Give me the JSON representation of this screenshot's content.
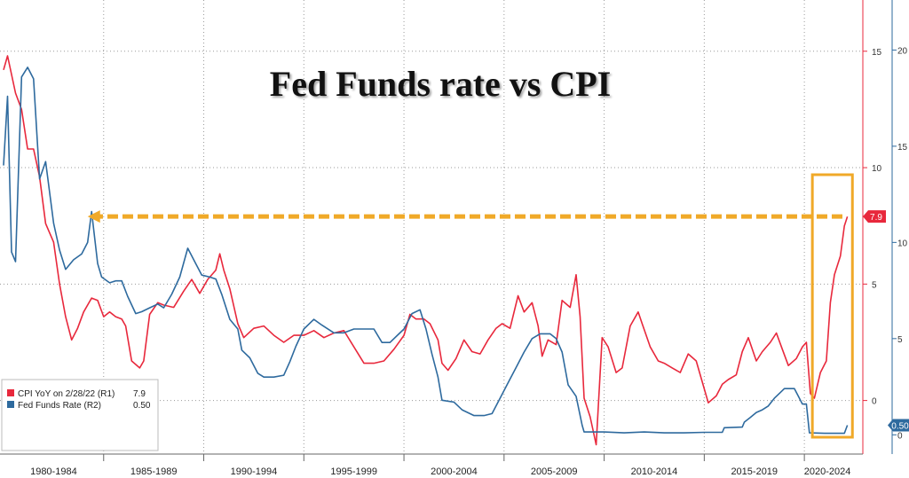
{
  "chart_data": {
    "type": "line",
    "title": "Fed Funds rate vs CPI",
    "x_tick_labels": [
      "1980-1984",
      "1985-1989",
      "1990-1994",
      "1995-1999",
      "2000-2004",
      "2005-2009",
      "2010-2014",
      "2015-2019",
      "2020-2024"
    ],
    "x_range": [
      1980.0,
      2022.3
    ],
    "axis_r1": {
      "ticks": [
        0,
        5,
        10,
        15
      ],
      "range": [
        -2.3,
        17.2
      ]
    },
    "axis_r2": {
      "ticks": [
        0,
        5,
        10,
        15,
        20
      ],
      "range": [
        -1.0,
        22.6
      ]
    },
    "grid": true,
    "legend_position": "bottom-left",
    "series": [
      {
        "name": "CPI YoY on 2/28/22 (R1)",
        "legend_value": "7.9",
        "axis": "R1",
        "color": "#e8283c",
        "points": [
          [
            1980.0,
            14.2
          ],
          [
            1980.2,
            14.8
          ],
          [
            1980.6,
            13.2
          ],
          [
            1980.9,
            12.5
          ],
          [
            1981.2,
            10.8
          ],
          [
            1981.5,
            10.8
          ],
          [
            1981.8,
            9.6
          ],
          [
            1982.1,
            7.6
          ],
          [
            1982.5,
            6.8
          ],
          [
            1982.8,
            5.0
          ],
          [
            1983.1,
            3.6
          ],
          [
            1983.4,
            2.6
          ],
          [
            1983.7,
            3.1
          ],
          [
            1984.0,
            3.8
          ],
          [
            1984.4,
            4.4
          ],
          [
            1984.7,
            4.3
          ],
          [
            1985.0,
            3.6
          ],
          [
            1985.3,
            3.8
          ],
          [
            1985.6,
            3.6
          ],
          [
            1985.9,
            3.5
          ],
          [
            1986.1,
            3.2
          ],
          [
            1986.4,
            1.7
          ],
          [
            1986.8,
            1.4
          ],
          [
            1987.0,
            1.7
          ],
          [
            1987.3,
            3.7
          ],
          [
            1987.7,
            4.2
          ],
          [
            1988.0,
            4.1
          ],
          [
            1988.5,
            4.0
          ],
          [
            1989.0,
            4.7
          ],
          [
            1989.4,
            5.2
          ],
          [
            1989.8,
            4.6
          ],
          [
            1990.2,
            5.2
          ],
          [
            1990.6,
            5.6
          ],
          [
            1990.8,
            6.3
          ],
          [
            1991.0,
            5.6
          ],
          [
            1991.3,
            4.8
          ],
          [
            1991.7,
            3.3
          ],
          [
            1992.0,
            2.7
          ],
          [
            1992.5,
            3.1
          ],
          [
            1993.0,
            3.2
          ],
          [
            1993.5,
            2.8
          ],
          [
            1994.0,
            2.5
          ],
          [
            1994.5,
            2.8
          ],
          [
            1995.0,
            2.8
          ],
          [
            1995.5,
            3.0
          ],
          [
            1996.0,
            2.7
          ],
          [
            1996.5,
            2.9
          ],
          [
            1997.0,
            3.0
          ],
          [
            1997.5,
            2.3
          ],
          [
            1998.0,
            1.6
          ],
          [
            1998.5,
            1.6
          ],
          [
            1999.0,
            1.7
          ],
          [
            1999.5,
            2.2
          ],
          [
            2000.0,
            2.8
          ],
          [
            2000.3,
            3.7
          ],
          [
            2000.6,
            3.5
          ],
          [
            2001.0,
            3.5
          ],
          [
            2001.3,
            3.3
          ],
          [
            2001.7,
            2.6
          ],
          [
            2001.9,
            1.6
          ],
          [
            2002.2,
            1.3
          ],
          [
            2002.6,
            1.8
          ],
          [
            2003.0,
            2.6
          ],
          [
            2003.4,
            2.1
          ],
          [
            2003.8,
            2.0
          ],
          [
            2004.2,
            2.6
          ],
          [
            2004.6,
            3.1
          ],
          [
            2004.9,
            3.3
          ],
          [
            2005.3,
            3.1
          ],
          [
            2005.7,
            4.5
          ],
          [
            2006.0,
            3.8
          ],
          [
            2006.4,
            4.2
          ],
          [
            2006.7,
            3.2
          ],
          [
            2006.9,
            1.9
          ],
          [
            2007.2,
            2.6
          ],
          [
            2007.6,
            2.4
          ],
          [
            2007.9,
            4.3
          ],
          [
            2008.3,
            4.0
          ],
          [
            2008.6,
            5.4
          ],
          [
            2008.8,
            3.6
          ],
          [
            2009.0,
            0.1
          ],
          [
            2009.3,
            -0.7
          ],
          [
            2009.6,
            -1.9
          ],
          [
            2009.9,
            2.7
          ],
          [
            2010.2,
            2.3
          ],
          [
            2010.6,
            1.2
          ],
          [
            2010.9,
            1.4
          ],
          [
            2011.3,
            3.2
          ],
          [
            2011.7,
            3.8
          ],
          [
            2011.9,
            3.3
          ],
          [
            2012.3,
            2.3
          ],
          [
            2012.7,
            1.7
          ],
          [
            2013.0,
            1.6
          ],
          [
            2013.4,
            1.4
          ],
          [
            2013.8,
            1.2
          ],
          [
            2014.2,
            2.0
          ],
          [
            2014.6,
            1.7
          ],
          [
            2014.9,
            0.8
          ],
          [
            2015.2,
            -0.1
          ],
          [
            2015.6,
            0.2
          ],
          [
            2015.9,
            0.7
          ],
          [
            2016.2,
            0.9
          ],
          [
            2016.6,
            1.1
          ],
          [
            2016.9,
            2.1
          ],
          [
            2017.2,
            2.7
          ],
          [
            2017.6,
            1.7
          ],
          [
            2017.9,
            2.1
          ],
          [
            2018.3,
            2.5
          ],
          [
            2018.6,
            2.9
          ],
          [
            2018.9,
            2.2
          ],
          [
            2019.2,
            1.5
          ],
          [
            2019.6,
            1.8
          ],
          [
            2019.9,
            2.3
          ],
          [
            2020.1,
            2.5
          ],
          [
            2020.3,
            0.3
          ],
          [
            2020.5,
            0.1
          ],
          [
            2020.8,
            1.2
          ],
          [
            2021.1,
            1.7
          ],
          [
            2021.3,
            4.2
          ],
          [
            2021.5,
            5.4
          ],
          [
            2021.8,
            6.2
          ],
          [
            2022.0,
            7.5
          ],
          [
            2022.15,
            7.9
          ]
        ]
      },
      {
        "name": "Fed Funds Rate (R2)",
        "legend_value": "0.50",
        "axis": "R2",
        "color": "#2e6a9e",
        "points": [
          [
            1980.0,
            14.0
          ],
          [
            1980.2,
            17.6
          ],
          [
            1980.4,
            9.5
          ],
          [
            1980.6,
            9.0
          ],
          [
            1980.9,
            18.6
          ],
          [
            1981.2,
            19.1
          ],
          [
            1981.5,
            18.5
          ],
          [
            1981.8,
            13.3
          ],
          [
            1982.1,
            14.2
          ],
          [
            1982.5,
            11.0
          ],
          [
            1982.8,
            9.6
          ],
          [
            1983.1,
            8.6
          ],
          [
            1983.5,
            9.1
          ],
          [
            1983.9,
            9.4
          ],
          [
            1984.2,
            10.0
          ],
          [
            1984.4,
            11.6
          ],
          [
            1984.7,
            8.9
          ],
          [
            1984.9,
            8.2
          ],
          [
            1985.3,
            7.9
          ],
          [
            1985.6,
            8.0
          ],
          [
            1985.9,
            8.0
          ],
          [
            1986.2,
            7.2
          ],
          [
            1986.6,
            6.3
          ],
          [
            1986.9,
            6.4
          ],
          [
            1987.3,
            6.6
          ],
          [
            1987.7,
            6.8
          ],
          [
            1988.0,
            6.6
          ],
          [
            1988.4,
            7.3
          ],
          [
            1988.8,
            8.2
          ],
          [
            1989.2,
            9.7
          ],
          [
            1989.6,
            8.9
          ],
          [
            1989.9,
            8.3
          ],
          [
            1990.3,
            8.2
          ],
          [
            1990.6,
            8.1
          ],
          [
            1990.9,
            7.3
          ],
          [
            1991.3,
            6.0
          ],
          [
            1991.7,
            5.5
          ],
          [
            1991.9,
            4.4
          ],
          [
            1992.3,
            4.0
          ],
          [
            1992.7,
            3.2
          ],
          [
            1993.0,
            3.0
          ],
          [
            1993.5,
            3.0
          ],
          [
            1994.0,
            3.1
          ],
          [
            1994.3,
            3.8
          ],
          [
            1994.6,
            4.6
          ],
          [
            1995.0,
            5.5
          ],
          [
            1995.5,
            6.0
          ],
          [
            1995.9,
            5.7
          ],
          [
            1996.5,
            5.3
          ],
          [
            1997.0,
            5.3
          ],
          [
            1997.5,
            5.5
          ],
          [
            1998.0,
            5.5
          ],
          [
            1998.5,
            5.5
          ],
          [
            1998.9,
            4.8
          ],
          [
            1999.3,
            4.8
          ],
          [
            1999.7,
            5.2
          ],
          [
            2000.0,
            5.5
          ],
          [
            2000.4,
            6.3
          ],
          [
            2000.8,
            6.5
          ],
          [
            2001.1,
            5.5
          ],
          [
            2001.4,
            4.2
          ],
          [
            2001.7,
            3.0
          ],
          [
            2001.9,
            1.8
          ],
          [
            2002.5,
            1.7
          ],
          [
            2002.9,
            1.3
          ],
          [
            2003.5,
            1.0
          ],
          [
            2004.0,
            1.0
          ],
          [
            2004.4,
            1.1
          ],
          [
            2004.8,
            1.9
          ],
          [
            2005.2,
            2.7
          ],
          [
            2005.6,
            3.5
          ],
          [
            2006.0,
            4.3
          ],
          [
            2006.4,
            5.0
          ],
          [
            2006.8,
            5.25
          ],
          [
            2007.3,
            5.25
          ],
          [
            2007.6,
            5.0
          ],
          [
            2007.9,
            4.3
          ],
          [
            2008.2,
            2.6
          ],
          [
            2008.6,
            2.0
          ],
          [
            2008.9,
            0.5
          ],
          [
            2009.0,
            0.15
          ],
          [
            2010.0,
            0.15
          ],
          [
            2011.0,
            0.1
          ],
          [
            2012.0,
            0.15
          ],
          [
            2013.0,
            0.1
          ],
          [
            2014.0,
            0.1
          ],
          [
            2015.0,
            0.13
          ],
          [
            2015.9,
            0.13
          ],
          [
            2016.0,
            0.37
          ],
          [
            2016.9,
            0.4
          ],
          [
            2017.0,
            0.66
          ],
          [
            2017.3,
            0.9
          ],
          [
            2017.6,
            1.16
          ],
          [
            2017.9,
            1.3
          ],
          [
            2018.2,
            1.5
          ],
          [
            2018.5,
            1.9
          ],
          [
            2018.8,
            2.2
          ],
          [
            2019.0,
            2.4
          ],
          [
            2019.5,
            2.4
          ],
          [
            2019.7,
            2.0
          ],
          [
            2019.9,
            1.6
          ],
          [
            2020.1,
            1.6
          ],
          [
            2020.25,
            0.1
          ],
          [
            2021.0,
            0.08
          ],
          [
            2022.0,
            0.08
          ],
          [
            2022.15,
            0.5
          ]
        ]
      }
    ],
    "annotations": [
      {
        "type": "dashed-arrow",
        "color": "#f0a928",
        "from_year": 2021.9,
        "to_year": 1984.2,
        "value_r1": 7.9
      },
      {
        "type": "highlight-box",
        "color": "#f0a928",
        "from_year": 2020.4,
        "to_year": 2022.4
      }
    ]
  }
}
